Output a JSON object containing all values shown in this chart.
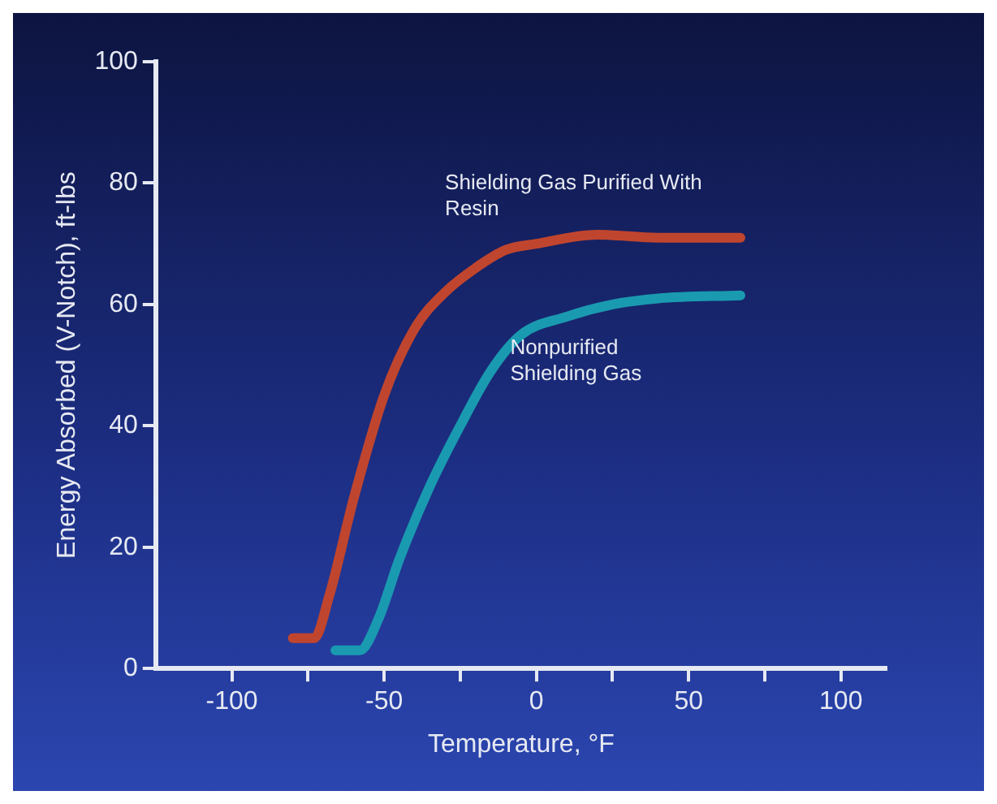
{
  "chart_data": {
    "type": "line",
    "xlabel": "Temperature, °F",
    "ylabel": "Energy Absorbed (V-Notch), ft-lbs",
    "xlim": [
      -125,
      115
    ],
    "xticks": [
      -100,
      {
        "value": -75,
        "label": null
      },
      -50,
      {
        "value": -25,
        "label": null
      },
      0,
      {
        "value": 25,
        "label": null
      },
      50,
      {
        "value": 75,
        "label": null
      },
      100
    ],
    "ylim": [
      0,
      100
    ],
    "yticks": [
      0,
      20,
      40,
      60,
      80,
      100
    ],
    "grid": false,
    "legend": false,
    "marker": "none",
    "line_style": "solid",
    "series": [
      {
        "name": "Shielding Gas Purified With Resin",
        "color": "#c0452e",
        "x": [
          -80,
          -73,
          -68,
          -60,
          -50,
          -40,
          -30,
          -20,
          -10,
          0,
          20,
          40,
          67
        ],
        "values": [
          5,
          5,
          12,
          28,
          45,
          56,
          62,
          66,
          69,
          70,
          71.5,
          71,
          71
        ]
      },
      {
        "name": "Nonpurified Shielding Gas",
        "color": "#1a9ab0",
        "x": [
          -66,
          -58,
          -52,
          -45,
          -35,
          -25,
          -15,
          -5,
          10,
          25,
          40,
          67
        ],
        "values": [
          3,
          3,
          8,
          18,
          30,
          40,
          49,
          55,
          58,
          60,
          61,
          61.5
        ]
      }
    ]
  }
}
